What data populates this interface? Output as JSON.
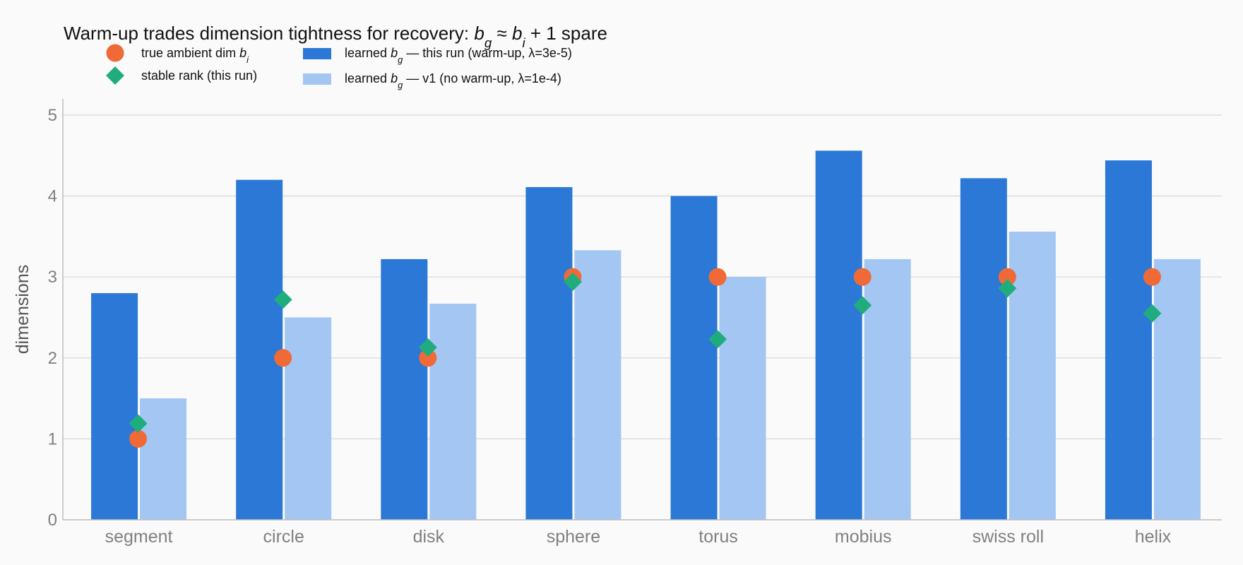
{
  "chart_data": {
    "type": "bar",
    "title_parts": [
      {
        "t": "Warm-up trades dimension tightness for recovery: ",
        "style": "normal"
      },
      {
        "t": "b",
        "style": "italic"
      },
      {
        "t": "g",
        "style": "italic-sub"
      },
      {
        "t": " ≈ ",
        "style": "normal"
      },
      {
        "t": "b",
        "style": "italic"
      },
      {
        "t": "i",
        "style": "italic-sub"
      },
      {
        "t": " + 1 spare",
        "style": "normal"
      }
    ],
    "ylabel": "dimensions",
    "xlabel": "",
    "categories": [
      "segment",
      "circle",
      "disk",
      "sphere",
      "torus",
      "mobius",
      "swiss roll",
      "helix"
    ],
    "ylim": [
      0,
      5.2
    ],
    "yticks": [
      0,
      1,
      2,
      3,
      4,
      5
    ],
    "grid": true,
    "legend_position": "top-left",
    "series": [
      {
        "key": "bg_this",
        "kind": "bar",
        "color": "#2b78d6",
        "label_parts": [
          {
            "t": "learned ",
            "style": "normal"
          },
          {
            "t": "b",
            "style": "italic"
          },
          {
            "t": "g",
            "style": "italic-sub"
          },
          {
            "t": " — this run (warm-up, λ=3e-5)",
            "style": "normal"
          }
        ],
        "values": [
          2.8,
          4.2,
          3.22,
          4.11,
          4.0,
          4.56,
          4.22,
          4.44
        ]
      },
      {
        "key": "bg_v1",
        "kind": "bar",
        "color": "#a3c6f3",
        "label_parts": [
          {
            "t": "learned ",
            "style": "normal"
          },
          {
            "t": "b",
            "style": "italic"
          },
          {
            "t": "g",
            "style": "italic-sub"
          },
          {
            "t": " — v1 (no warm-up, λ=1e-4)",
            "style": "normal"
          }
        ],
        "values": [
          1.5,
          2.5,
          2.67,
          3.33,
          3.0,
          3.22,
          3.56,
          3.22
        ]
      },
      {
        "key": "true_dim",
        "kind": "marker-circle",
        "color": "#ef6a36",
        "label_parts": [
          {
            "t": "true ambient dim ",
            "style": "normal"
          },
          {
            "t": "b",
            "style": "italic"
          },
          {
            "t": "i",
            "style": "italic-sub"
          }
        ],
        "values": [
          1,
          2,
          2,
          3,
          3,
          3,
          3,
          3
        ]
      },
      {
        "key": "stable_rank",
        "kind": "marker-diamond",
        "color": "#1fad7e",
        "label_parts": [
          {
            "t": "stable rank (this run)",
            "style": "normal"
          }
        ],
        "values": [
          1.19,
          2.72,
          2.13,
          2.94,
          2.23,
          2.65,
          2.86,
          2.55
        ]
      }
    ]
  }
}
